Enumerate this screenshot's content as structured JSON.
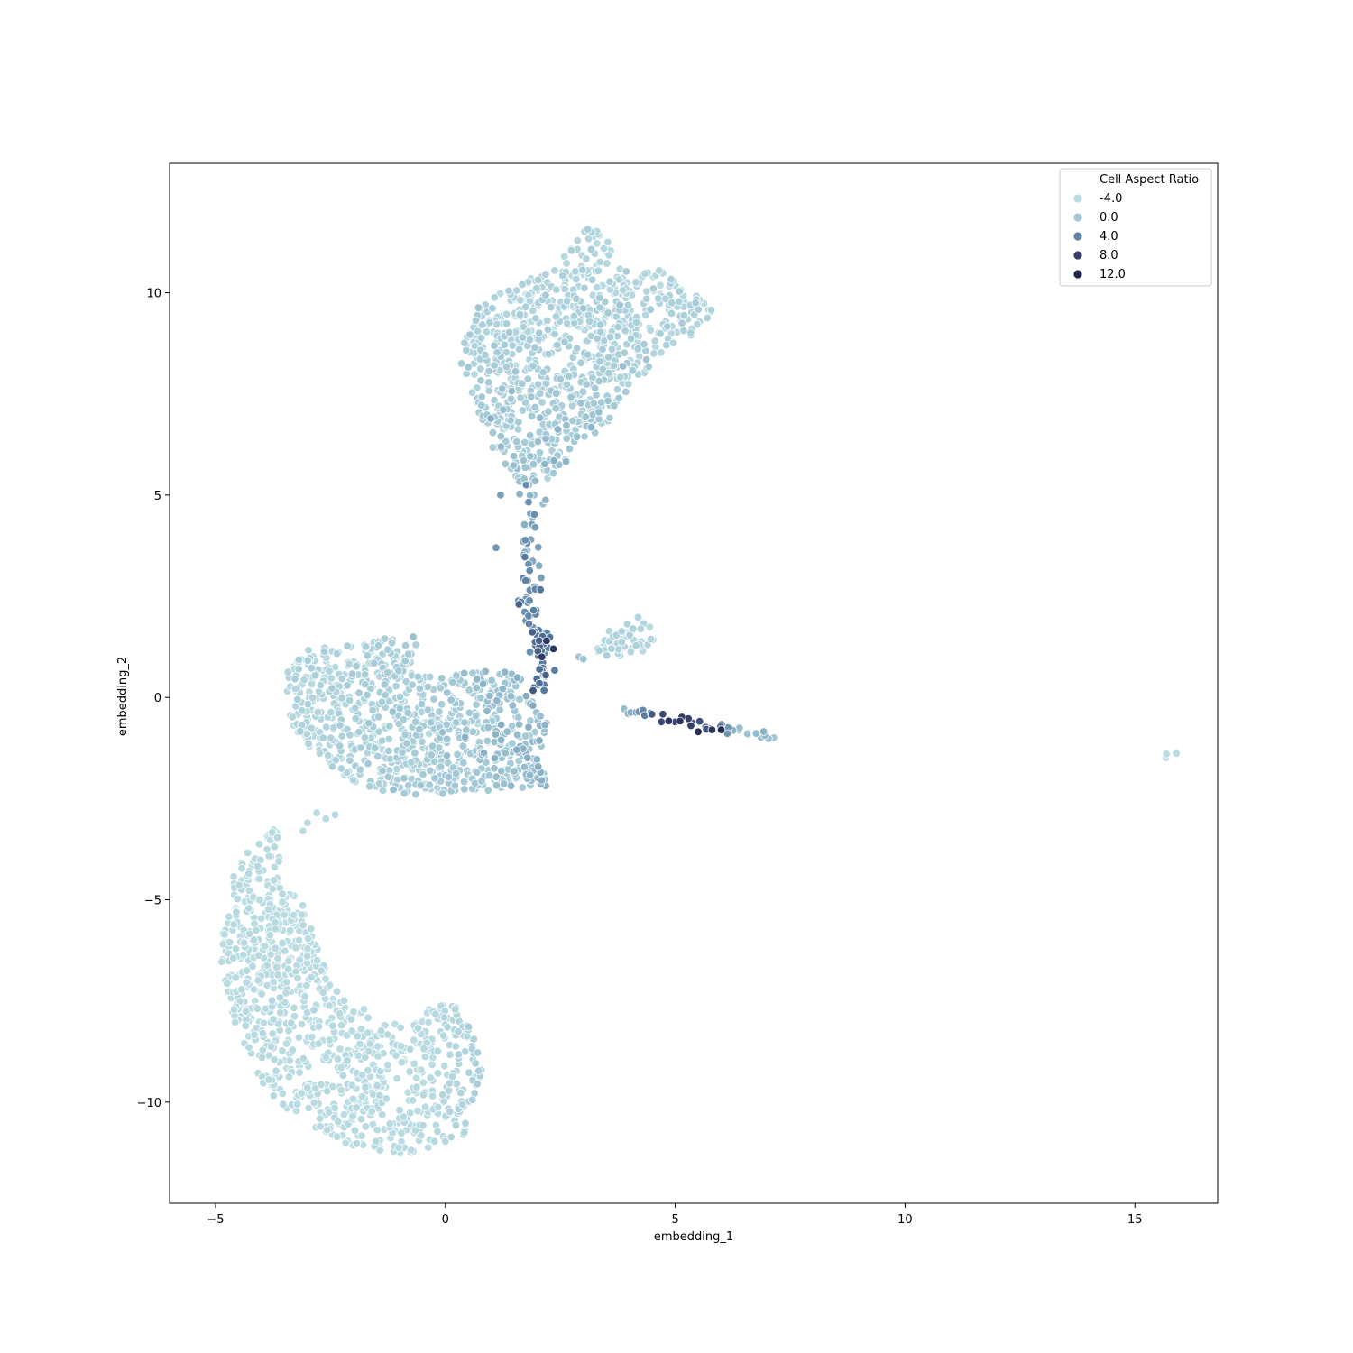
{
  "chart_data": {
    "type": "scatter",
    "title": "",
    "xlabel": "embedding_1",
    "ylabel": "embedding_2",
    "xlim": [
      -6,
      16.8
    ],
    "ylim": [
      -12.5,
      13.2
    ],
    "xticks": [
      -5,
      0,
      5,
      10,
      15
    ],
    "xtick_labels": [
      "−5",
      "0",
      "5",
      "10",
      "15"
    ],
    "yticks": [
      -10,
      -5,
      0,
      5,
      10
    ],
    "ytick_labels": [
      "−10",
      "−5",
      "0",
      "5",
      "10"
    ],
    "grid": false,
    "legend": {
      "title": "Cell Aspect Ratio",
      "placement": "top-right",
      "entries": [
        {
          "label": "-4.0",
          "color": "#bcdde3"
        },
        {
          "label": "0.0",
          "color": "#a3c9d6"
        },
        {
          "label": "4.0",
          "color": "#5f85a8"
        },
        {
          "label": "8.0",
          "color": "#343f6b"
        },
        {
          "label": "12.0",
          "color": "#1f2447"
        }
      ]
    },
    "hue_scale": {
      "min": -4,
      "max": 12
    },
    "clusters": [
      {
        "name_hint": "top",
        "n": 900,
        "polygon": [
          [
            0.3,
            8.3
          ],
          [
            0.6,
            9.6
          ],
          [
            1.5,
            10.2
          ],
          [
            2.2,
            10.5
          ],
          [
            2.8,
            11.2
          ],
          [
            3.2,
            11.8
          ],
          [
            3.6,
            11.2
          ],
          [
            3.9,
            10.6
          ],
          [
            4.6,
            10.6
          ],
          [
            5.2,
            10.1
          ],
          [
            5.9,
            9.7
          ],
          [
            5.8,
            9.4
          ],
          [
            5.3,
            8.9
          ],
          [
            4.6,
            8.4
          ],
          [
            4.2,
            7.8
          ],
          [
            3.8,
            7.2
          ],
          [
            3.4,
            6.6
          ],
          [
            2.8,
            6.0
          ],
          [
            2.4,
            5.6
          ],
          [
            2.1,
            5.2
          ],
          [
            1.9,
            4.8
          ],
          [
            1.5,
            5.5
          ],
          [
            1.1,
            6.0
          ],
          [
            0.7,
            7.0
          ],
          [
            0.5,
            7.8
          ]
        ],
        "value_base": -2.8,
        "value_spread": 1.6,
        "gradient": {
          "axis": "y",
          "from": 10.5,
          "to": 5.0,
          "delta": 3.0
        }
      },
      {
        "name_hint": "middle",
        "n": 900,
        "polygon": [
          [
            -3.5,
            0.8
          ],
          [
            -3.0,
            1.2
          ],
          [
            -2.0,
            1.3
          ],
          [
            -1.2,
            1.5
          ],
          [
            -0.6,
            1.4
          ],
          [
            -0.8,
            0.7
          ],
          [
            0.0,
            0.5
          ],
          [
            0.8,
            0.7
          ],
          [
            1.5,
            0.6
          ],
          [
            1.9,
            0.2
          ],
          [
            2.2,
            -0.6
          ],
          [
            2.1,
            -1.6
          ],
          [
            2.2,
            -2.2
          ],
          [
            1.5,
            -2.3
          ],
          [
            0.8,
            -2.3
          ],
          [
            0.0,
            -2.4
          ],
          [
            -1.0,
            -2.4
          ],
          [
            -1.8,
            -2.2
          ],
          [
            -2.4,
            -1.8
          ],
          [
            -3.0,
            -1.2
          ],
          [
            -3.4,
            -0.6
          ],
          [
            -3.5,
            0.2
          ]
        ],
        "value_base": -3.0,
        "value_spread": 1.5,
        "gradient": {
          "axis": "x",
          "from": -3.5,
          "to": 2.2,
          "delta": 3.5
        }
      },
      {
        "name_hint": "bottom",
        "n": 950,
        "polygon": [
          [
            -3.6,
            -3.1
          ],
          [
            -3.5,
            -4.5
          ],
          [
            -3.0,
            -5.3
          ],
          [
            -2.7,
            -6.5
          ],
          [
            -2.3,
            -7.3
          ],
          [
            -1.6,
            -7.8
          ],
          [
            -0.8,
            -8.2
          ],
          [
            -0.3,
            -7.6
          ],
          [
            0.5,
            -7.6
          ],
          [
            0.7,
            -8.5
          ],
          [
            0.8,
            -9.2
          ],
          [
            0.6,
            -10.0
          ],
          [
            0.6,
            -10.7
          ],
          [
            0.0,
            -11.0
          ],
          [
            -0.8,
            -11.3
          ],
          [
            -1.5,
            -11.2
          ],
          [
            -2.3,
            -11.0
          ],
          [
            -3.0,
            -10.6
          ],
          [
            -3.6,
            -10.1
          ],
          [
            -4.2,
            -9.2
          ],
          [
            -4.6,
            -8.0
          ],
          [
            -4.9,
            -6.5
          ],
          [
            -4.8,
            -5.3
          ],
          [
            -4.6,
            -4.2
          ],
          [
            -4.2,
            -3.7
          ]
        ],
        "value_base": -3.6,
        "value_spread": 0.6,
        "gradient": {
          "axis": "x",
          "from": -0.3,
          "to": 0.8,
          "delta": 2.0
        }
      },
      {
        "name_hint": "small-blob",
        "n": 55,
        "polygon": [
          [
            3.2,
            1.2
          ],
          [
            3.7,
            1.8
          ],
          [
            4.2,
            2.0
          ],
          [
            4.6,
            1.6
          ],
          [
            4.4,
            1.1
          ],
          [
            3.8,
            1.0
          ],
          [
            3.4,
            1.0
          ]
        ],
        "value_base": -2.4,
        "value_spread": 1.0,
        "gradient": {
          "axis": "x",
          "from": 0,
          "to": 1,
          "delta": 0
        }
      },
      {
        "name_hint": "far-pair",
        "n": 3,
        "polygon": [
          [
            15.6,
            -1.6
          ],
          [
            15.8,
            -1.4
          ],
          [
            15.7,
            -1.5
          ]
        ],
        "value_base": -3.8,
        "value_spread": 0.2,
        "gradient": {
          "axis": "x",
          "from": 0,
          "to": 1,
          "delta": 0
        }
      }
    ],
    "bridge": {
      "name_hint": "vertical-bridge",
      "n": 90,
      "points": [
        [
          1.9,
          5.2
        ],
        [
          1.8,
          4.2
        ],
        [
          1.8,
          3.5
        ],
        [
          1.9,
          2.8
        ],
        [
          1.8,
          2.2
        ],
        [
          2.1,
          1.5
        ],
        [
          2.2,
          0.8
        ],
        [
          2.0,
          0.2
        ]
      ],
      "width": 0.22,
      "value_from": 1.5,
      "value_to": 5.5
    },
    "streak": {
      "name_hint": "horizontal-streak",
      "n": 38,
      "from": [
        3.8,
        -0.35
      ],
      "to": [
        7.2,
        -1.0
      ],
      "width": 0.06,
      "value_from": 0.5,
      "value_to": 8.0
    },
    "extras": [
      {
        "x": 2.35,
        "y": 1.2,
        "v": 9.5
      },
      {
        "x": 2.1,
        "y": 1.0,
        "v": 8.8
      },
      {
        "x": 5.5,
        "y": -0.85,
        "v": 10.5
      },
      {
        "x": 5.8,
        "y": -0.8,
        "v": 9.8
      },
      {
        "x": 6.0,
        "y": -0.8,
        "v": 11.0
      },
      {
        "x": 1.6,
        "y": 2.3,
        "v": 6.0
      },
      {
        "x": 2.2,
        "y": 1.4,
        "v": 9.0
      },
      {
        "x": -2.8,
        "y": -2.85,
        "v": -3.5
      },
      {
        "x": -2.6,
        "y": -3.0,
        "v": -3.4
      },
      {
        "x": -3.0,
        "y": -3.1,
        "v": -3.6
      },
      {
        "x": -2.4,
        "y": -2.9,
        "v": -3.5
      },
      {
        "x": -3.1,
        "y": -3.3,
        "v": -3.7
      },
      {
        "x": -0.7,
        "y": 1.5,
        "v": 0.5
      },
      {
        "x": 1.1,
        "y": 3.7,
        "v": 3.0
      },
      {
        "x": 1.2,
        "y": 5.0,
        "v": 2.5
      },
      {
        "x": 2.9,
        "y": 1.0,
        "v": 0.0
      },
      {
        "x": 3.0,
        "y": 0.95,
        "v": 0.3
      }
    ]
  }
}
